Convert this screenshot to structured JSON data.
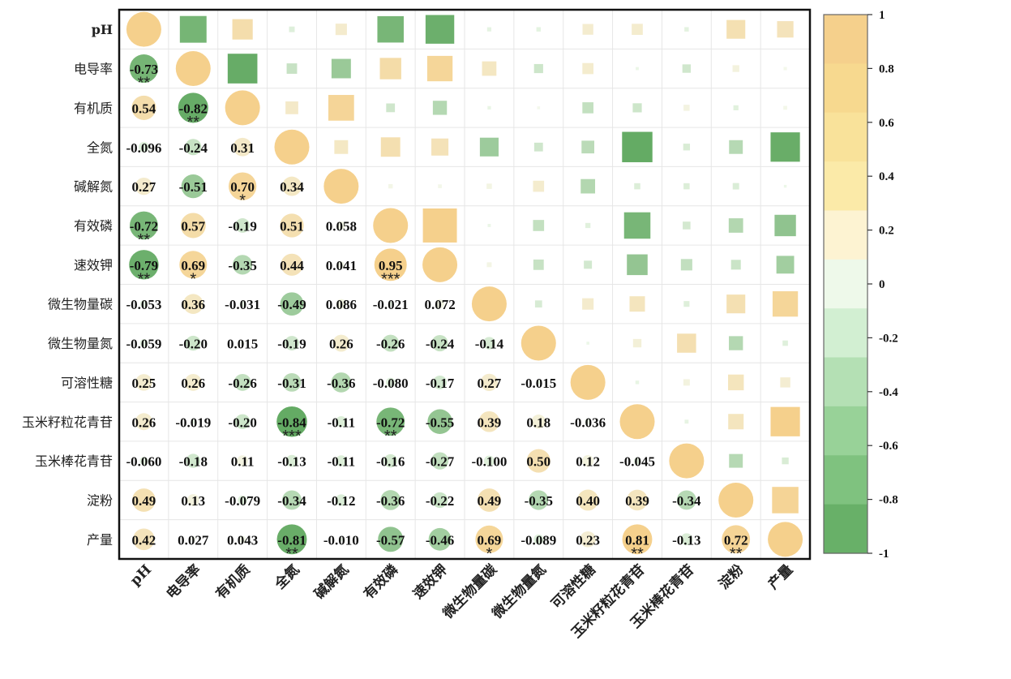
{
  "chart_data": {
    "type": "heatmap",
    "variables": [
      "pH",
      "电导率",
      "有机质",
      "全氮",
      "碱解氮",
      "有效磷",
      "速效钾",
      "微生物量碳",
      "微生物量氮",
      "可溶性糖",
      "玉米籽粒花青苷",
      "玉米棒花青苷",
      "淀粉",
      "产量"
    ],
    "lower_labels": [
      [],
      [
        "-0.73"
      ],
      [
        "0.54",
        "-0.82"
      ],
      [
        "-0.096",
        "-0.24",
        "0.31"
      ],
      [
        "0.27",
        "-0.51",
        "0.70",
        "0.34"
      ],
      [
        "-0.72",
        "0.57",
        "-0.19",
        "0.51",
        "0.058"
      ],
      [
        "-0.79",
        "0.69",
        "-0.35",
        "0.44",
        "0.041",
        "0.95"
      ],
      [
        "-0.053",
        "0.36",
        "-0.031",
        "-0.49",
        "0.086",
        "-0.021",
        "0.072"
      ],
      [
        "-0.059",
        "-0.20",
        "0.015",
        "-0.19",
        "0.26",
        "-0.26",
        "-0.24",
        "-0.14"
      ],
      [
        "0.25",
        "0.26",
        "-0.26",
        "-0.31",
        "-0.36",
        "-0.080",
        "-0.17",
        "0.27",
        "-0.015"
      ],
      [
        "0.26",
        "-0.019",
        "-0.20",
        "-0.84",
        "-0.11",
        "-0.72",
        "-0.55",
        "0.39",
        "0.18",
        "-0.036"
      ],
      [
        "-0.060",
        "-0.18",
        "0.11",
        "-0.13",
        "-0.11",
        "-0.16",
        "-0.27",
        "-0.100",
        "0.50",
        "0.12",
        "-0.045"
      ],
      [
        "0.49",
        "0.13",
        "-0.079",
        "-0.34",
        "-0.12",
        "-0.36",
        "-0.22",
        "0.49",
        "-0.35",
        "0.40",
        "0.39",
        "-0.34"
      ],
      [
        "0.42",
        "0.027",
        "0.043",
        "-0.81",
        "-0.010",
        "-0.57",
        "-0.46",
        "0.69",
        "-0.089",
        "0.23",
        "0.81",
        "-0.13",
        "0.72"
      ]
    ],
    "significance": [
      [],
      [
        "**"
      ],
      [
        "",
        "**"
      ],
      [
        "",
        "",
        ""
      ],
      [
        "",
        "",
        "*",
        ""
      ],
      [
        "**",
        "",
        "",
        "",
        ""
      ],
      [
        "**",
        "*",
        "",
        "",
        "",
        "***"
      ],
      [
        "",
        "",
        "",
        "",
        "",
        "",
        ""
      ],
      [
        "",
        "",
        "",
        "",
        "",
        "",
        "",
        ""
      ],
      [
        "",
        "",
        "",
        "",
        "",
        "",
        "",
        "",
        ""
      ],
      [
        "",
        "",
        "",
        "***",
        "",
        "**",
        "",
        "",
        "",
        ""
      ],
      [
        "",
        "",
        "",
        "",
        "",
        "",
        "",
        "",
        "",
        "",
        ""
      ],
      [
        "",
        "",
        "",
        "",
        "",
        "",
        "",
        "",
        "",
        "",
        "",
        ""
      ],
      [
        "",
        "",
        "",
        "**",
        "",
        "",
        "",
        "*",
        "",
        "",
        "**",
        "",
        "**"
      ]
    ],
    "colorbar": {
      "range": [
        -1,
        1
      ],
      "ticks": [
        "1",
        "0.8",
        "0.6",
        "0.4",
        "0.2",
        "0",
        "-0.2",
        "-0.4",
        "-0.6",
        "-0.8",
        "-1"
      ],
      "colors_top_to_bottom": [
        "#f5d08c",
        "#f7d98f",
        "#f9e29a",
        "#fbeaa8",
        "#fdf3d2",
        "#eef9ea",
        "#d2efd2",
        "#b4e0b4",
        "#98d298",
        "#7fc27f",
        "#68b068"
      ]
    },
    "colors": {
      "positive": "#f5d08c",
      "negative": "#5aa55a",
      "diagonal": "#f5d08c",
      "grid": "#e6e6e6",
      "frame": "#111111"
    }
  }
}
